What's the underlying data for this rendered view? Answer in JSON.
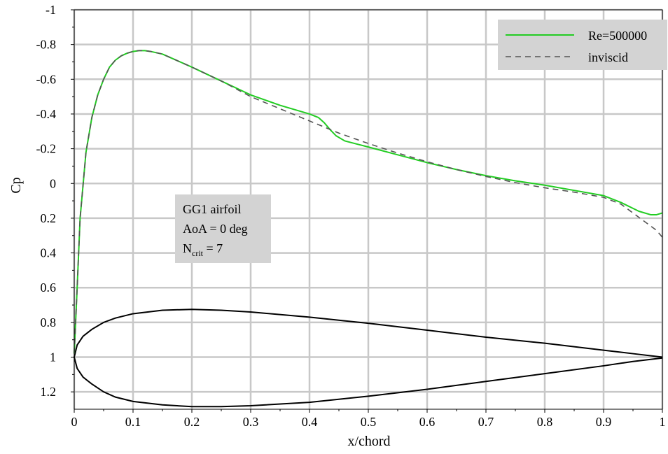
{
  "chart_data": {
    "type": "line",
    "xlabel": "x/chord",
    "ylabel": "Cp",
    "xlim": [
      0,
      1
    ],
    "ylim": [
      1.3,
      -1
    ],
    "y_axis_inverted": true,
    "grid": true,
    "x_ticks": [
      {
        "value": 0,
        "label": "0"
      },
      {
        "value": 0.1,
        "label": "0.1"
      },
      {
        "value": 0.2,
        "label": "0.2"
      },
      {
        "value": 0.3,
        "label": "0.3"
      },
      {
        "value": 0.4,
        "label": "0.4"
      },
      {
        "value": 0.5,
        "label": "0.5"
      },
      {
        "value": 0.6,
        "label": "0.6"
      },
      {
        "value": 0.7,
        "label": "0.7"
      },
      {
        "value": 0.8,
        "label": "0.8"
      },
      {
        "value": 0.9,
        "label": "0.9"
      },
      {
        "value": 1,
        "label": "1"
      }
    ],
    "y_ticks": [
      {
        "value": -1,
        "label": "-1"
      },
      {
        "value": -0.8,
        "label": "-0.8"
      },
      {
        "value": -0.6,
        "label": "-0.6"
      },
      {
        "value": -0.4,
        "label": "-0.4"
      },
      {
        "value": -0.2,
        "label": "-0.2"
      },
      {
        "value": 0,
        "label": "0"
      },
      {
        "value": 0.2,
        "label": "0.2"
      },
      {
        "value": 0.4,
        "label": "0.4"
      },
      {
        "value": 0.6,
        "label": "0.6"
      },
      {
        "value": 0.8,
        "label": "0.8"
      },
      {
        "value": 1,
        "label": "1"
      },
      {
        "value": 1.2,
        "label": "1.2"
      }
    ],
    "legend": {
      "placement": "top-right",
      "background": "#d3d3d3"
    },
    "series": [
      {
        "name": "Re=500000",
        "color": "#22cc22",
        "dash": "solid",
        "x": [
          0,
          0.005,
          0.01,
          0.02,
          0.03,
          0.04,
          0.05,
          0.06,
          0.07,
          0.08,
          0.09,
          0.1,
          0.11,
          0.12,
          0.13,
          0.15,
          0.2,
          0.25,
          0.3,
          0.35,
          0.4,
          0.415,
          0.425,
          0.435,
          0.445,
          0.46,
          0.5,
          0.55,
          0.6,
          0.65,
          0.7,
          0.75,
          0.8,
          0.85,
          0.9,
          0.93,
          0.96,
          0.98,
          0.99,
          1
        ],
        "y": [
          0.98,
          0.6,
          0.2,
          -0.18,
          -0.38,
          -0.51,
          -0.6,
          -0.67,
          -0.71,
          -0.735,
          -0.75,
          -0.76,
          -0.765,
          -0.765,
          -0.76,
          -0.745,
          -0.67,
          -0.59,
          -0.51,
          -0.45,
          -0.4,
          -0.38,
          -0.35,
          -0.31,
          -0.275,
          -0.245,
          -0.21,
          -0.165,
          -0.12,
          -0.08,
          -0.045,
          -0.015,
          0.01,
          0.04,
          0.07,
          0.11,
          0.16,
          0.18,
          0.18,
          0.17
        ]
      },
      {
        "name": "inviscid",
        "color": "#555555",
        "dash": "dashed",
        "x": [
          0,
          0.005,
          0.01,
          0.02,
          0.03,
          0.04,
          0.05,
          0.06,
          0.07,
          0.08,
          0.09,
          0.1,
          0.11,
          0.12,
          0.13,
          0.15,
          0.2,
          0.25,
          0.3,
          0.35,
          0.4,
          0.45,
          0.5,
          0.55,
          0.6,
          0.65,
          0.7,
          0.75,
          0.8,
          0.85,
          0.9,
          0.93,
          0.95,
          0.97,
          0.99,
          1
        ],
        "y": [
          0.98,
          0.6,
          0.2,
          -0.18,
          -0.38,
          -0.51,
          -0.6,
          -0.67,
          -0.71,
          -0.735,
          -0.75,
          -0.76,
          -0.765,
          -0.765,
          -0.76,
          -0.745,
          -0.67,
          -0.59,
          -0.5,
          -0.43,
          -0.36,
          -0.29,
          -0.23,
          -0.175,
          -0.125,
          -0.08,
          -0.04,
          -0.005,
          0.025,
          0.05,
          0.08,
          0.12,
          0.17,
          0.22,
          0.27,
          0.31
        ]
      }
    ],
    "geometry_outline": {
      "name": "",
      "color": "#000000",
      "x": [
        1,
        0.95,
        0.9,
        0.8,
        0.7,
        0.6,
        0.5,
        0.4,
        0.3,
        0.25,
        0.2,
        0.15,
        0.1,
        0.07,
        0.05,
        0.03,
        0.015,
        0.005,
        0,
        0.005,
        0.015,
        0.03,
        0.05,
        0.07,
        0.1,
        0.15,
        0.2,
        0.25,
        0.3,
        0.4,
        0.5,
        0.6,
        0.7,
        0.8,
        0.9,
        0.95,
        1
      ],
      "y": [
        1,
        0.98,
        0.96,
        0.92,
        0.885,
        0.845,
        0.805,
        0.77,
        0.74,
        0.73,
        0.725,
        0.73,
        0.75,
        0.775,
        0.8,
        0.84,
        0.88,
        0.93,
        1,
        1.065,
        1.115,
        1.155,
        1.2,
        1.23,
        1.255,
        1.275,
        1.285,
        1.285,
        1.28,
        1.26,
        1.225,
        1.185,
        1.14,
        1.095,
        1.05,
        1.025,
        1.005
      ]
    },
    "annotation": {
      "background": "#d3d3d3",
      "line1": "GG1 airfoil",
      "line2": "AoA = 0 deg",
      "line3_main": "N",
      "line3_sub": "crit",
      "line3_tail": " = 7"
    }
  }
}
